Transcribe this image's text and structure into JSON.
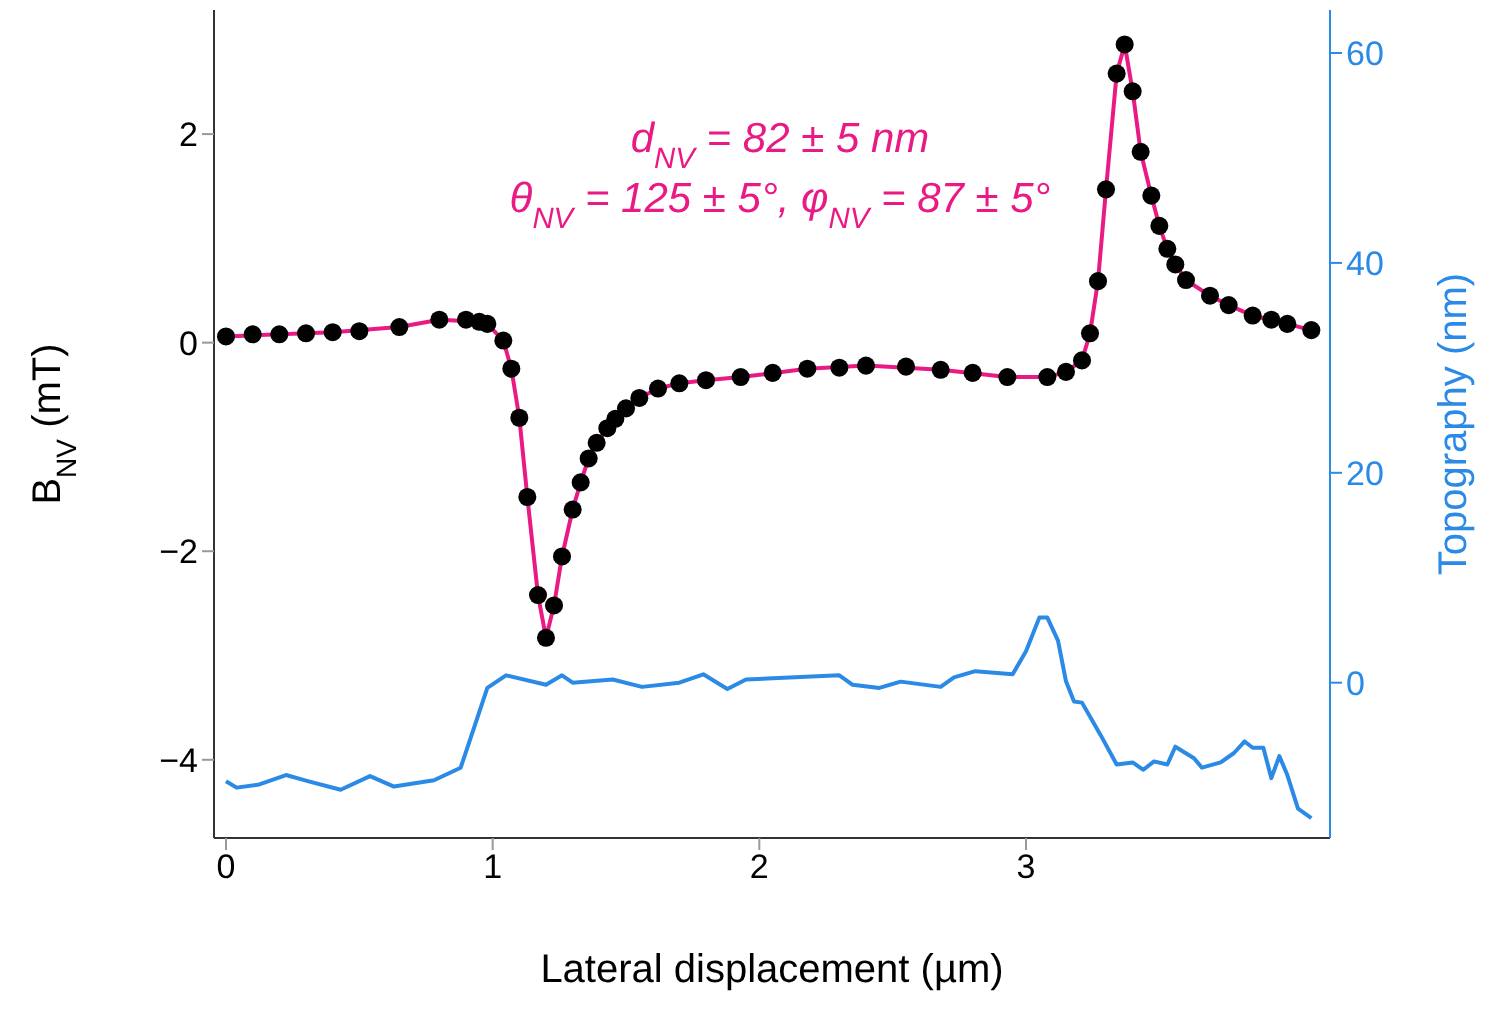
{
  "chart_data": {
    "type": "scatter",
    "xlabel": "Lateral displacement (µm)",
    "ylabel": "B$_{NV}$ (mT)",
    "y2label": "Topography (nm)",
    "annotations": [
      "d$_{NV}$ = 82 ± 5 nm",
      "θ$_{NV}$ = 125 ± 5°, φ$_{NV}$ = 87 ± 5°"
    ],
    "xlim": [
      -0.045,
      4.14
    ],
    "xticks": [
      0,
      1,
      2,
      3
    ],
    "ylim": [
      -4.75,
      3.19
    ],
    "yticks": [
      -4,
      -2,
      0,
      2
    ],
    "y2lim": [
      -14.8,
      64.1
    ],
    "y2ticks": [
      0,
      20,
      40,
      60
    ],
    "series": [
      {
        "type": "line",
        "marker": "none",
        "color": "#ea1a84",
        "x": [
          0,
          0.4,
          0.65,
          0.8,
          0.95,
          0.98,
          1.04,
          1.07,
          1.1,
          1.13,
          1.17,
          1.2,
          1.23,
          1.26,
          1.3,
          1.33,
          1.36,
          1.39,
          1.43,
          1.46,
          1.5,
          1.55,
          1.62,
          1.7,
          1.8,
          1.93,
          2.18,
          2.4,
          2.68,
          2.93,
          3.08,
          3.15,
          3.21,
          3.24,
          3.27,
          3.3,
          3.34,
          3.37,
          3.4,
          3.43,
          3.47,
          3.5,
          3.53,
          3.56,
          3.6,
          3.69,
          3.76,
          3.85,
          3.98,
          4.07
        ],
        "values": [
          0.06,
          0.1,
          0.15,
          0.22,
          0.2,
          0.18,
          0.02,
          -0.25,
          -0.72,
          -1.48,
          -2.42,
          -2.83,
          -2.52,
          -2.05,
          -1.6,
          -1.34,
          -1.11,
          -0.96,
          -0.82,
          -0.73,
          -0.63,
          -0.53,
          -0.44,
          -0.39,
          -0.36,
          -0.33,
          -0.25,
          -0.22,
          -0.26,
          -0.33,
          -0.33,
          -0.28,
          -0.17,
          0.09,
          0.59,
          1.47,
          2.58,
          2.86,
          2.41,
          1.83,
          1.41,
          1.12,
          0.9,
          0.75,
          0.6,
          0.45,
          0.36,
          0.26,
          0.18,
          0.12
        ]
      },
      {
        "type": "line",
        "marker": "none",
        "axis": "y2",
        "color": "#2a8ae6",
        "x": [
          0,
          0.04,
          0.125,
          0.225,
          0.31,
          0.43,
          0.54,
          0.63,
          0.78,
          0.88,
          0.93,
          0.98,
          1.05,
          1.2,
          1.26,
          1.3,
          1.45,
          1.56,
          1.7,
          1.79,
          1.88,
          1.95,
          2.3,
          2.35,
          2.45,
          2.53,
          2.68,
          2.73,
          2.81,
          2.95,
          3.0,
          3.05,
          3.08,
          3.12,
          3.15,
          3.18,
          3.21,
          3.28,
          3.34,
          3.4,
          3.44,
          3.48,
          3.53,
          3.56,
          3.63,
          3.66,
          3.73,
          3.78,
          3.82,
          3.85,
          3.89,
          3.92,
          3.95,
          3.98,
          4.02,
          4.07
        ],
        "values": [
          -9.4,
          -10.0,
          -9.7,
          -8.8,
          -9.4,
          -10.2,
          -8.9,
          -9.9,
          -9.3,
          -8.1,
          -4.3,
          -0.5,
          0.7,
          -0.2,
          0.7,
          0,
          0.3,
          -0.4,
          0,
          0.8,
          -0.6,
          0.3,
          0.7,
          -0.2,
          -0.5,
          0.1,
          -0.4,
          0.5,
          1.1,
          0.8,
          3.0,
          6.2,
          6.2,
          4.0,
          0.13,
          -1.8,
          -1.9,
          -5.0,
          -7.8,
          -7.6,
          -8.3,
          -7.5,
          -7.8,
          -6.1,
          -7.2,
          -8.1,
          -7.6,
          -6.7,
          -5.6,
          -6.2,
          -6.2,
          -9.1,
          -7.0,
          -8.8,
          -12.0,
          -12.9
        ]
      },
      {
        "marker": "circle",
        "color": "#000000",
        "x": [
          0,
          0.1,
          0.2,
          0.3,
          0.4,
          0.5,
          0.65,
          0.8,
          0.9,
          0.95,
          0.98,
          1.04,
          1.07,
          1.1,
          1.13,
          1.17,
          1.2,
          1.23,
          1.26,
          1.3,
          1.33,
          1.36,
          1.39,
          1.43,
          1.46,
          1.5,
          1.55,
          1.62,
          1.7,
          1.8,
          1.93,
          2.05,
          2.18,
          2.3,
          2.4,
          2.55,
          2.68,
          2.8,
          2.93,
          3.08,
          3.15,
          3.21,
          3.24,
          3.27,
          3.3,
          3.34,
          3.37,
          3.4,
          3.43,
          3.47,
          3.5,
          3.53,
          3.56,
          3.6,
          3.69,
          3.76,
          3.85,
          3.92,
          3.98,
          4.07
        ],
        "values": [
          0.06,
          0.08,
          0.08,
          0.09,
          0.1,
          0.11,
          0.15,
          0.22,
          0.22,
          0.2,
          0.18,
          0.02,
          -0.25,
          -0.72,
          -1.48,
          -2.42,
          -2.83,
          -2.52,
          -2.05,
          -1.6,
          -1.34,
          -1.11,
          -0.96,
          -0.82,
          -0.73,
          -0.63,
          -0.53,
          -0.44,
          -0.39,
          -0.36,
          -0.33,
          -0.29,
          -0.25,
          -0.24,
          -0.22,
          -0.23,
          -0.26,
          -0.29,
          -0.33,
          -0.33,
          -0.28,
          -0.17,
          0.09,
          0.59,
          1.47,
          2.58,
          2.86,
          2.41,
          1.83,
          1.41,
          1.12,
          0.9,
          0.75,
          0.6,
          0.45,
          0.36,
          0.26,
          0.22,
          0.18,
          0.12
        ]
      }
    ]
  }
}
